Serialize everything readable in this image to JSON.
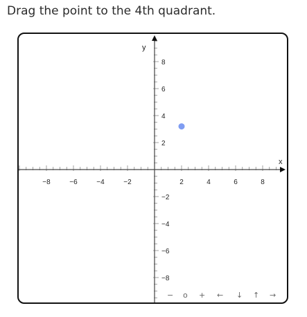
{
  "instruction": "Drag the point to the 4th quadrant.",
  "board": {
    "x_axis_label": "x",
    "y_axis_label": "y",
    "x_range": [
      -10,
      10
    ],
    "y_range": [
      -10,
      10
    ],
    "minor_tick_step": 0.5,
    "major_tick_step": 2,
    "x_tick_labels": [
      "−8",
      "−6",
      "−4",
      "−2",
      "2",
      "4",
      "6",
      "8"
    ],
    "y_tick_labels": [
      "8",
      "6",
      "4",
      "2",
      "−2",
      "−4",
      "−6",
      "−8"
    ],
    "draggable_point": {
      "x": 2,
      "y": 3.2,
      "color": "#7f9df2"
    },
    "navigation": {
      "zoom_out": "−",
      "reset": "o",
      "zoom_in": "+",
      "left": "←",
      "down": "↓",
      "up": "↑",
      "right": "→"
    }
  }
}
